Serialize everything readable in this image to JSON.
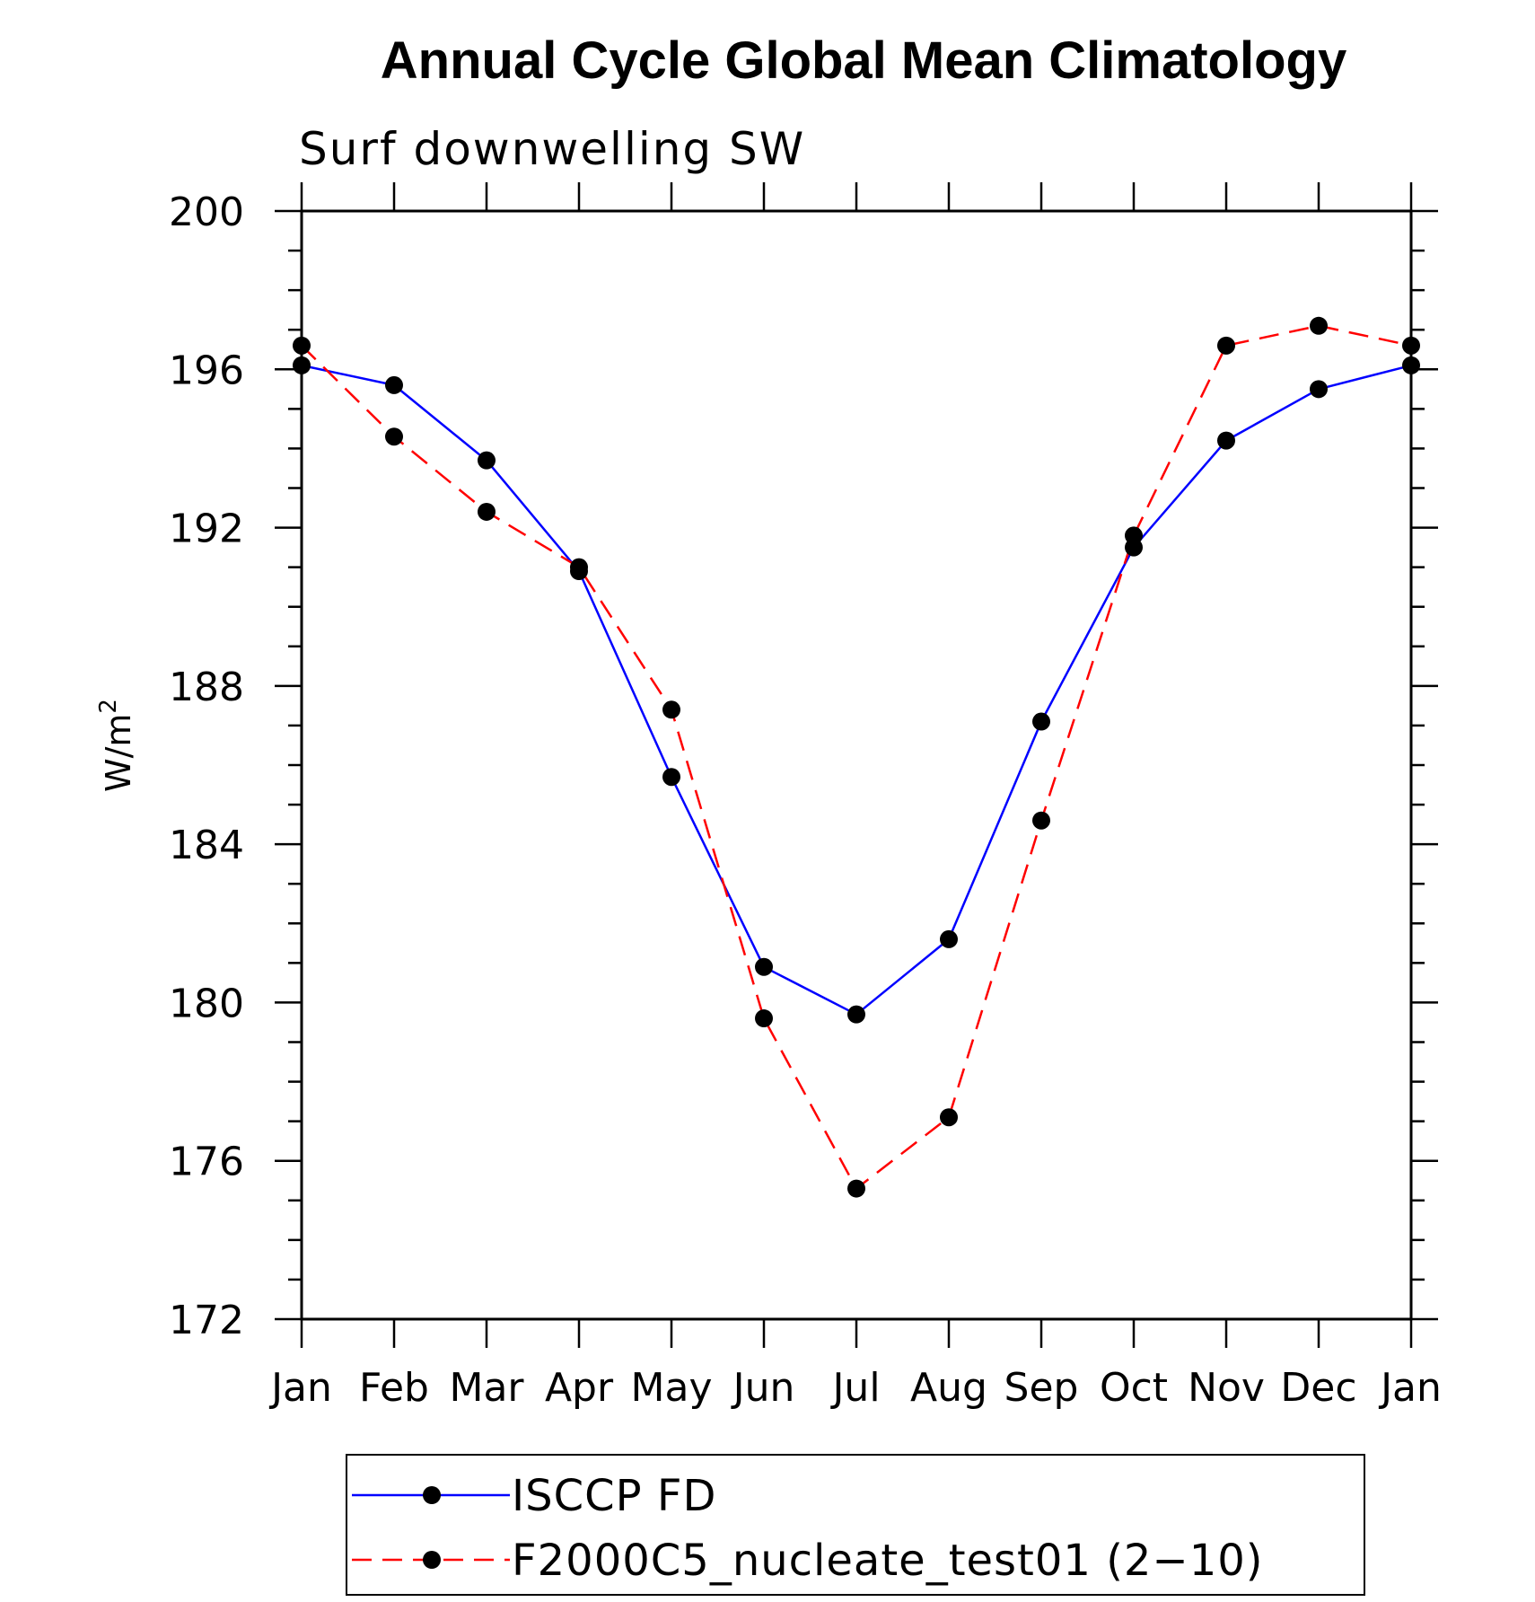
{
  "chart_data": {
    "type": "line",
    "title": "Annual Cycle Global Mean Climatology",
    "subtitle": "Surf downwelling SW",
    "xlabel": "",
    "ylabel": "W/m",
    "ylabel_superscript": "2",
    "categories": [
      "Jan",
      "Feb",
      "Mar",
      "Apr",
      "May",
      "Jun",
      "Jul",
      "Aug",
      "Sep",
      "Oct",
      "Nov",
      "Dec",
      "Jan"
    ],
    "ylim": [
      172,
      200
    ],
    "yticks": [
      172,
      176,
      180,
      184,
      188,
      192,
      196,
      200
    ],
    "ytick_labels": [
      "172",
      "176",
      "180",
      "184",
      "188",
      "192",
      "196",
      "200"
    ],
    "series": [
      {
        "name": "ISCCP FD",
        "color": "#0000ff",
        "dash": "solid",
        "values": [
          196.1,
          195.6,
          193.7,
          190.9,
          185.7,
          180.9,
          179.7,
          181.6,
          187.1,
          191.5,
          194.2,
          195.5,
          196.1
        ]
      },
      {
        "name": "F2000C5_nucleate_test01 (2−10)",
        "color": "#ff0000",
        "dash": "dashed",
        "values": [
          196.6,
          194.3,
          192.4,
          191.0,
          187.4,
          179.6,
          175.3,
          177.1,
          184.6,
          191.8,
          196.6,
          197.1,
          196.6
        ]
      }
    ],
    "marker_color": "#000000",
    "grid": false,
    "legend_position": "bottom"
  }
}
